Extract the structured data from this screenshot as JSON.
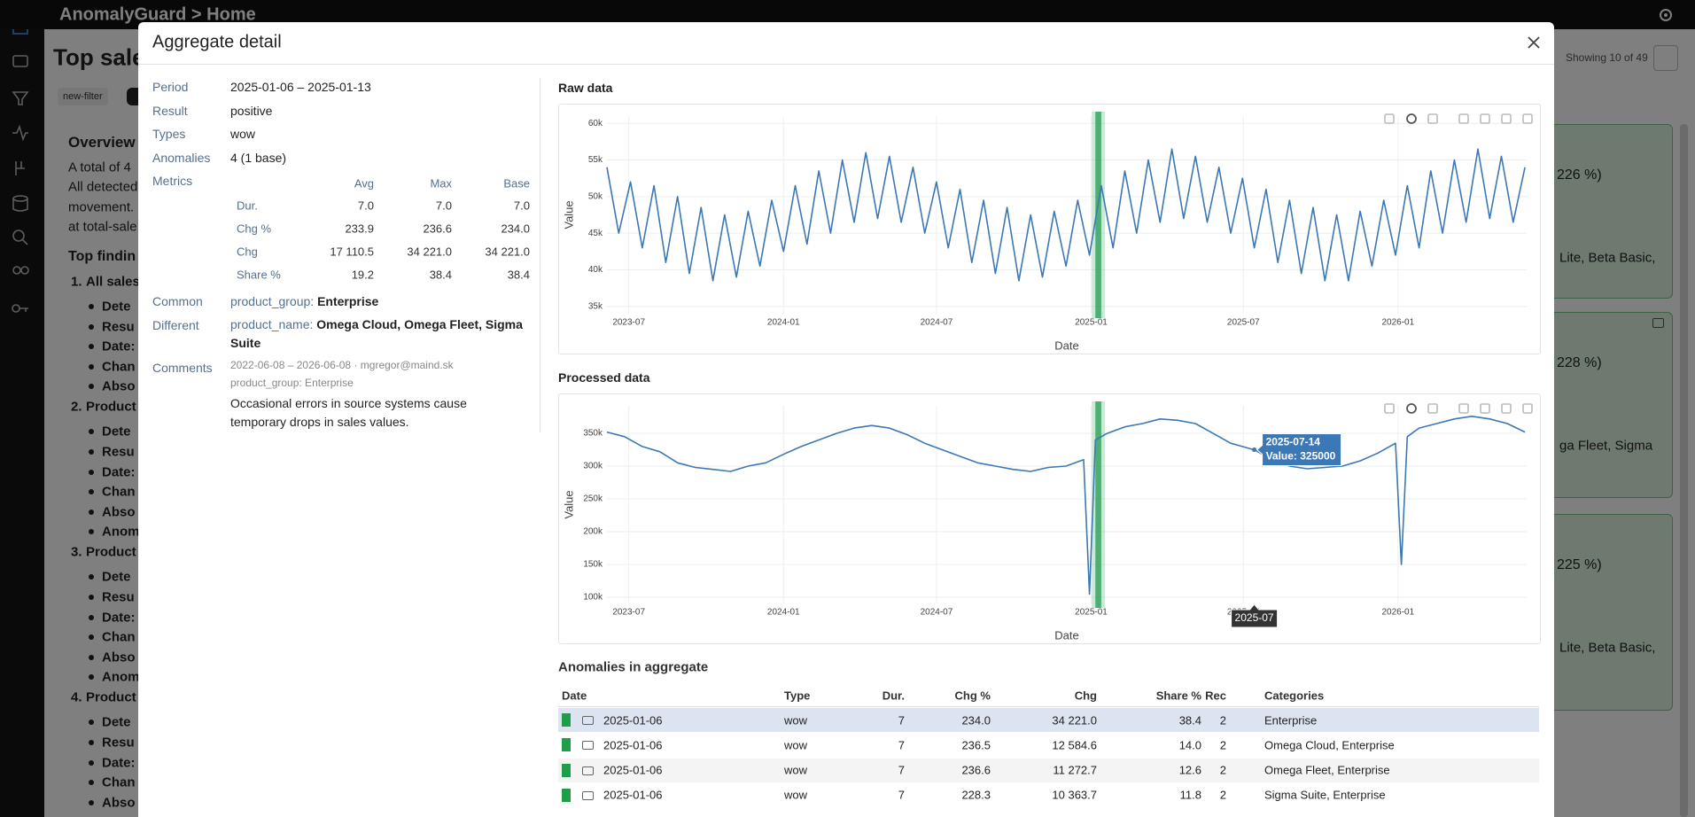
{
  "header": {
    "app": "AnomalyGuard > Home"
  },
  "background": {
    "title": "Top sale",
    "chips": [
      "new-filter"
    ],
    "overview": "Overview",
    "lines": [
      "A total of 4",
      "All detected",
      "movement.",
      "at total-sale"
    ],
    "findings_title": "Top findin",
    "findings": [
      {
        "title": "All sales",
        "items": [
          "Dete",
          "Resu",
          "Date:",
          "Chan",
          "Abso"
        ]
      },
      {
        "title": "Product",
        "items": [
          "Dete",
          "Resu",
          "Date:",
          "Chan",
          "Abso",
          "Anom"
        ]
      },
      {
        "title": "Product",
        "items": [
          "Dete",
          "Resu",
          "Date:",
          "Chan",
          "Abso",
          "Anom"
        ]
      },
      {
        "title": "Product",
        "items": [
          "Dete",
          "Resu",
          "Date:",
          "Chan",
          "Abso"
        ]
      }
    ],
    "showing": "Showing 10 of 49",
    "cards": [
      [
        "226 %)",
        "Lite, Beta Basic,"
      ],
      [
        "228 %)",
        "ga Fleet, Sigma"
      ],
      [
        "225 %)",
        "Lite, Beta Basic,"
      ]
    ]
  },
  "modal": {
    "title": "Aggregate detail",
    "details": [
      {
        "label": "Period",
        "value": "2025-01-06 – 2025-01-13"
      },
      {
        "label": "Result",
        "value": "positive"
      },
      {
        "label": "Types",
        "value": "wow"
      },
      {
        "label": "Anomalies",
        "value": "4 (1 base)"
      }
    ],
    "metrics": {
      "label": "Metrics",
      "columns": [
        "Avg",
        "Max",
        "Base"
      ],
      "rows": [
        {
          "name": "Dur.",
          "cells": [
            "7.0",
            "7.0",
            "7.0"
          ]
        },
        {
          "name": "Chg %",
          "cells": [
            "233.9",
            "236.6",
            "234.0"
          ]
        },
        {
          "name": "Chg",
          "cells": [
            "17 110.5",
            "34 221.0",
            "34 221.0"
          ]
        },
        {
          "name": "Share %",
          "cells": [
            "19.2",
            "38.4",
            "38.4"
          ]
        }
      ]
    },
    "common": {
      "label": "Common",
      "key": "product_group:",
      "value": "Enterprise"
    },
    "different": {
      "label": "Different",
      "key": "product_name:",
      "value": "Omega Cloud, Omega Fleet, Sigma Suite"
    },
    "comments": {
      "label": "Comments",
      "meta": "2022-06-08 – 2026-06-08 · mgregor@maind.sk",
      "scope": "product_group: Enterprise",
      "text": "Occasional errors in source systems cause temporary drops in sales values."
    },
    "table": {
      "title": "Anomalies in aggregate",
      "columns": [
        "Date",
        "Type",
        "Dur.",
        "Chg %",
        "Chg",
        "Share %",
        "Rec",
        "Categories"
      ],
      "rows": [
        [
          "2025-01-06",
          "wow",
          "7",
          "234.0",
          "34 221.0",
          "38.4",
          "2",
          "Enterprise"
        ],
        [
          "2025-01-06",
          "wow",
          "7",
          "236.5",
          "12 584.6",
          "14.0",
          "2",
          "Omega Cloud, Enterprise"
        ],
        [
          "2025-01-06",
          "wow",
          "7",
          "236.6",
          "11 272.7",
          "12.6",
          "2",
          "Omega Fleet, Enterprise"
        ],
        [
          "2025-01-06",
          "wow",
          "7",
          "228.3",
          "10 363.7",
          "11.8",
          "2",
          "Sigma Suite, Enterprise"
        ]
      ]
    }
  },
  "chart_data": [
    {
      "type": "line",
      "title": "Raw data",
      "x_label": "Date",
      "y_label": "Value",
      "color": "#3b78b5",
      "grid": true,
      "xlim": [
        "2023-06-05",
        "2026-06-03"
      ],
      "xticks": [
        "2023-07",
        "2024-01",
        "2024-07",
        "2025-01",
        "2025-07",
        "2026-01"
      ],
      "ylim": [
        34000,
        61000
      ],
      "yticks": [
        {
          "value": 35000,
          "label": "35k"
        },
        {
          "value": 40000,
          "label": "40k"
        },
        {
          "value": 45000,
          "label": "45k"
        },
        {
          "value": 50000,
          "label": "50k"
        },
        {
          "value": 55000,
          "label": "55k"
        },
        {
          "value": 60000,
          "label": "60k"
        }
      ],
      "highlight": [
        "2025-01-06",
        "2025-01-13"
      ],
      "x": [
        "2023-06-05",
        "2023-06-19",
        "2023-07-03",
        "2023-07-17",
        "2023-07-31",
        "2023-08-14",
        "2023-08-28",
        "2023-09-11",
        "2023-09-25",
        "2023-10-09",
        "2023-10-23",
        "2023-11-06",
        "2023-11-20",
        "2023-12-04",
        "2023-12-18",
        "2024-01-01",
        "2024-01-15",
        "2024-01-29",
        "2024-02-12",
        "2024-02-26",
        "2024-03-11",
        "2024-03-25",
        "2024-04-08",
        "2024-04-22",
        "2024-05-06",
        "2024-05-20",
        "2024-06-03",
        "2024-06-17",
        "2024-07-01",
        "2024-07-15",
        "2024-07-29",
        "2024-08-12",
        "2024-08-26",
        "2024-09-09",
        "2024-09-23",
        "2024-10-07",
        "2024-10-21",
        "2024-11-04",
        "2024-11-18",
        "2024-12-02",
        "2024-12-16",
        "2024-12-30",
        "2025-01-13",
        "2025-01-27",
        "2025-02-10",
        "2025-02-24",
        "2025-03-10",
        "2025-03-24",
        "2025-04-07",
        "2025-04-21",
        "2025-05-05",
        "2025-05-19",
        "2025-06-02",
        "2025-06-16",
        "2025-06-30",
        "2025-07-14",
        "2025-07-28",
        "2025-08-11",
        "2025-08-25",
        "2025-09-08",
        "2025-09-22",
        "2025-10-06",
        "2025-10-20",
        "2025-11-03",
        "2025-11-17",
        "2025-12-01",
        "2025-12-15",
        "2025-12-29",
        "2026-01-12",
        "2026-01-26",
        "2026-02-09",
        "2026-02-23",
        "2026-03-09",
        "2026-03-23",
        "2026-04-06",
        "2026-04-20",
        "2026-05-04",
        "2026-05-18",
        "2026-06-01"
      ],
      "values": [
        54000,
        45000,
        52000,
        43000,
        51500,
        41000,
        50000,
        39500,
        48500,
        38500,
        47500,
        39000,
        48000,
        40500,
        49500,
        42500,
        51500,
        43500,
        53500,
        45000,
        55000,
        46500,
        56000,
        47000,
        55500,
        46500,
        54000,
        45000,
        52000,
        43000,
        51000,
        41000,
        49500,
        39500,
        48500,
        38500,
        47500,
        39000,
        48000,
        40500,
        49500,
        42000,
        51500,
        43000,
        53500,
        45000,
        55000,
        46500,
        56500,
        47000,
        55500,
        46500,
        54000,
        45000,
        52500,
        43000,
        51000,
        41000,
        49500,
        39500,
        48500,
        38500,
        47500,
        38500,
        48000,
        40500,
        49500,
        42000,
        51500,
        43000,
        53500,
        45000,
        55000,
        46500,
        56500,
        47000,
        55500,
        46500,
        54000
      ]
    },
    {
      "type": "line",
      "title": "Processed data",
      "x_label": "Date",
      "y_label": "Value",
      "color": "#3b78b5",
      "grid": true,
      "xlim": [
        "2023-06-05",
        "2026-06-03"
      ],
      "xticks": [
        "2023-07",
        "2024-01",
        "2024-07",
        "2025-01",
        "2025-07",
        "2026-01"
      ],
      "ylim": [
        90500,
        392000
      ],
      "yticks": [
        {
          "value": 100000,
          "label": "100k"
        },
        {
          "value": 150000,
          "label": "150k"
        },
        {
          "value": 200000,
          "label": "200k"
        },
        {
          "value": 250000,
          "label": "250k"
        },
        {
          "value": 300000,
          "label": "300k"
        },
        {
          "value": 350000,
          "label": "350k"
        }
      ],
      "highlight": [
        "2025-01-06",
        "2025-01-13"
      ],
      "tooltip": {
        "x": "2025-07-14",
        "text": "Value: 325000",
        "axis_label": "2025-07"
      },
      "x": [
        "2023-06-05",
        "2023-06-26",
        "2023-07-17",
        "2023-08-07",
        "2023-08-28",
        "2023-09-18",
        "2023-10-09",
        "2023-10-30",
        "2023-11-20",
        "2023-12-11",
        "2024-01-01",
        "2024-01-22",
        "2024-02-12",
        "2024-03-04",
        "2024-03-25",
        "2024-04-15",
        "2024-05-06",
        "2024-05-27",
        "2024-06-17",
        "2024-07-08",
        "2024-07-29",
        "2024-08-19",
        "2024-09-09",
        "2024-09-30",
        "2024-10-21",
        "2024-11-11",
        "2024-12-02",
        "2024-12-23",
        "2024-12-30",
        "2025-01-06",
        "2025-01-20",
        "2025-02-10",
        "2025-03-03",
        "2025-03-24",
        "2025-04-14",
        "2025-05-05",
        "2025-05-26",
        "2025-06-16",
        "2025-07-14",
        "2025-08-04",
        "2025-08-25",
        "2025-09-15",
        "2025-10-06",
        "2025-10-27",
        "2025-11-17",
        "2025-12-08",
        "2025-12-22",
        "2025-12-29",
        "2026-01-05",
        "2026-01-12",
        "2026-01-26",
        "2026-02-16",
        "2026-03-09",
        "2026-03-30",
        "2026-04-20",
        "2026-05-11",
        "2026-06-01"
      ],
      "values": [
        352000,
        345000,
        330000,
        322000,
        305000,
        298000,
        295000,
        292000,
        300000,
        305000,
        318000,
        330000,
        340000,
        350000,
        358000,
        362000,
        358000,
        348000,
        335000,
        325000,
        315000,
        305000,
        300000,
        295000,
        292000,
        298000,
        300000,
        310000,
        105000,
        340000,
        350000,
        360000,
        365000,
        372000,
        370000,
        365000,
        350000,
        335000,
        325000,
        310000,
        300000,
        296000,
        298000,
        300000,
        308000,
        320000,
        330000,
        335000,
        150000,
        345000,
        358000,
        365000,
        372000,
        376000,
        372000,
        365000,
        352000
      ]
    }
  ]
}
